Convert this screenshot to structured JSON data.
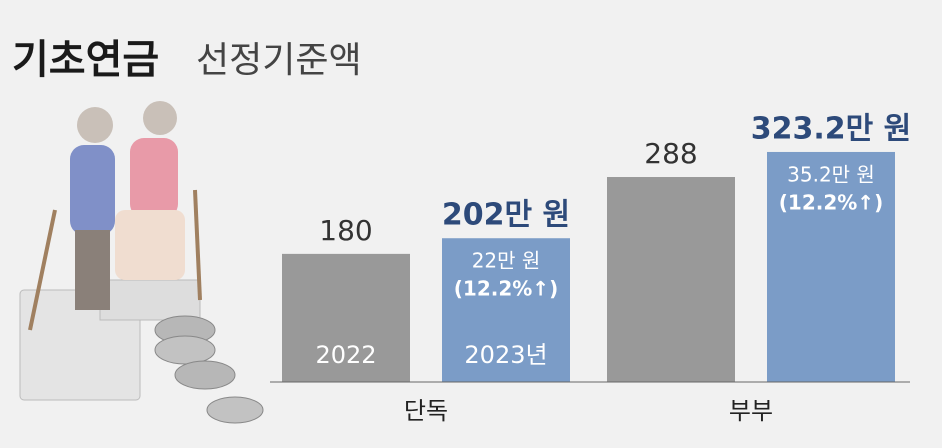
{
  "chart_data": {
    "type": "bar",
    "title": "기초연금",
    "subtitle": "선정기준액",
    "categories": [
      "단독",
      "부부"
    ],
    "series": [
      {
        "name": "2022",
        "color": "#999999",
        "values": [
          180,
          288
        ],
        "value_labels": [
          "180",
          "288"
        ]
      },
      {
        "name": "2023년",
        "color": "#7b9cc7",
        "values": [
          202,
          323.2
        ],
        "value_labels": [
          "202만 원",
          "323.2만 원"
        ]
      }
    ],
    "annotations": [
      {
        "amount": "22만 원",
        "rate": "(12.2%↑)"
      },
      {
        "amount": "35.2만 원",
        "rate": "(12.2%↑)"
      }
    ],
    "ylim": [
      0,
      340
    ]
  }
}
